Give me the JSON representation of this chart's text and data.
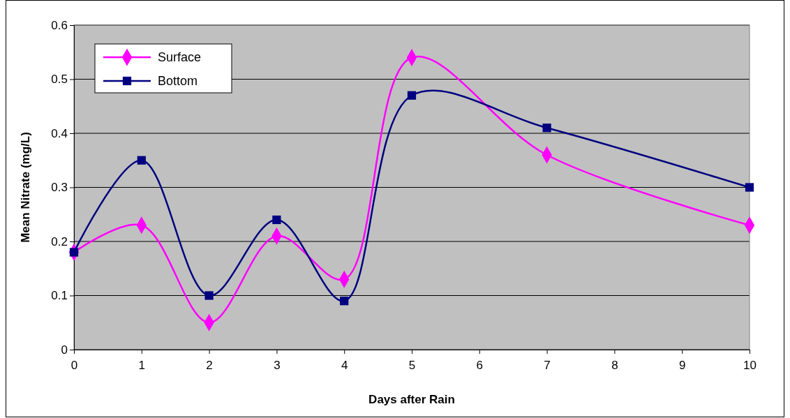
{
  "chart_data": {
    "type": "line",
    "xlabel": "Days after Rain",
    "ylabel": "Mean Nitrate (mg/L)",
    "x": [
      0,
      1,
      2,
      3,
      4,
      5,
      7,
      10
    ],
    "xlim": [
      0,
      10
    ],
    "xticks": [
      0,
      1,
      2,
      3,
      4,
      5,
      6,
      7,
      8,
      9,
      10
    ],
    "ylim": [
      0,
      0.6
    ],
    "yticks": [
      0,
      0.1,
      0.2,
      0.3,
      0.4,
      0.5,
      0.6
    ],
    "grid": "y",
    "legend": "top left",
    "series": [
      {
        "name": "Surface",
        "color": "#ff00ff",
        "marker": "diamond",
        "values": [
          0.18,
          0.23,
          0.05,
          0.21,
          0.13,
          0.54,
          0.36,
          0.23
        ]
      },
      {
        "name": "Bottom",
        "color": "#000080",
        "marker": "square",
        "values": [
          0.18,
          0.35,
          0.1,
          0.24,
          0.09,
          0.47,
          0.41,
          0.3
        ]
      }
    ]
  }
}
